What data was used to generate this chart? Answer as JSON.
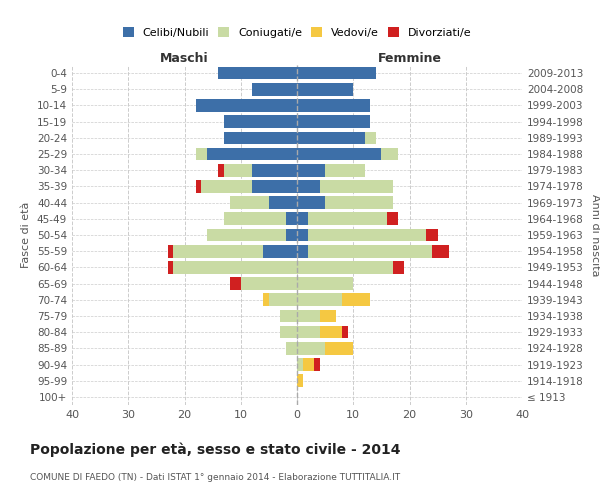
{
  "age_groups": [
    "0-4",
    "5-9",
    "10-14",
    "15-19",
    "20-24",
    "25-29",
    "30-34",
    "35-39",
    "40-44",
    "45-49",
    "50-54",
    "55-59",
    "60-64",
    "65-69",
    "70-74",
    "75-79",
    "80-84",
    "85-89",
    "90-94",
    "95-99",
    "100+"
  ],
  "birth_years": [
    "2009-2013",
    "2004-2008",
    "1999-2003",
    "1994-1998",
    "1989-1993",
    "1984-1988",
    "1979-1983",
    "1974-1978",
    "1969-1973",
    "1964-1968",
    "1959-1963",
    "1954-1958",
    "1949-1953",
    "1944-1948",
    "1939-1943",
    "1934-1938",
    "1929-1933",
    "1924-1928",
    "1919-1923",
    "1914-1918",
    "≤ 1913"
  ],
  "maschi": {
    "celibi": [
      14,
      8,
      18,
      13,
      13,
      16,
      8,
      8,
      5,
      2,
      2,
      6,
      0,
      0,
      0,
      0,
      0,
      0,
      0,
      0,
      0
    ],
    "coniugati": [
      0,
      0,
      0,
      0,
      0,
      2,
      5,
      9,
      7,
      11,
      14,
      16,
      22,
      10,
      5,
      3,
      3,
      2,
      0,
      0,
      0
    ],
    "vedovi": [
      0,
      0,
      0,
      0,
      0,
      0,
      0,
      0,
      0,
      0,
      0,
      0,
      0,
      0,
      1,
      0,
      0,
      0,
      0,
      0,
      0
    ],
    "divorziati": [
      0,
      0,
      0,
      0,
      0,
      0,
      1,
      1,
      0,
      0,
      0,
      1,
      1,
      2,
      0,
      0,
      0,
      0,
      0,
      0,
      0
    ]
  },
  "femmine": {
    "nubili": [
      14,
      10,
      13,
      13,
      12,
      15,
      5,
      4,
      5,
      2,
      2,
      2,
      0,
      0,
      0,
      0,
      0,
      0,
      0,
      0,
      0
    ],
    "coniugate": [
      0,
      0,
      0,
      0,
      2,
      3,
      7,
      13,
      12,
      14,
      21,
      22,
      17,
      10,
      8,
      4,
      4,
      5,
      1,
      0,
      0
    ],
    "vedove": [
      0,
      0,
      0,
      0,
      0,
      0,
      0,
      0,
      0,
      0,
      0,
      0,
      0,
      0,
      5,
      3,
      4,
      5,
      2,
      1,
      0
    ],
    "divorziate": [
      0,
      0,
      0,
      0,
      0,
      0,
      0,
      0,
      0,
      2,
      2,
      3,
      2,
      0,
      0,
      0,
      1,
      0,
      1,
      0,
      0
    ]
  },
  "color_celibi": "#3d6fa8",
  "color_coniugati": "#c9dba4",
  "color_vedovi": "#f5c842",
  "color_divorziati": "#d02020",
  "xlim": 40,
  "title": "Popolazione per età, sesso e stato civile - 2014",
  "subtitle": "COMUNE DI FAEDO (TN) - Dati ISTAT 1° gennaio 2014 - Elaborazione TUTTITALIA.IT",
  "ylabel_left": "Fasce di età",
  "ylabel_right": "Anni di nascita",
  "xlabel_maschi": "Maschi",
  "xlabel_femmine": "Femmine"
}
